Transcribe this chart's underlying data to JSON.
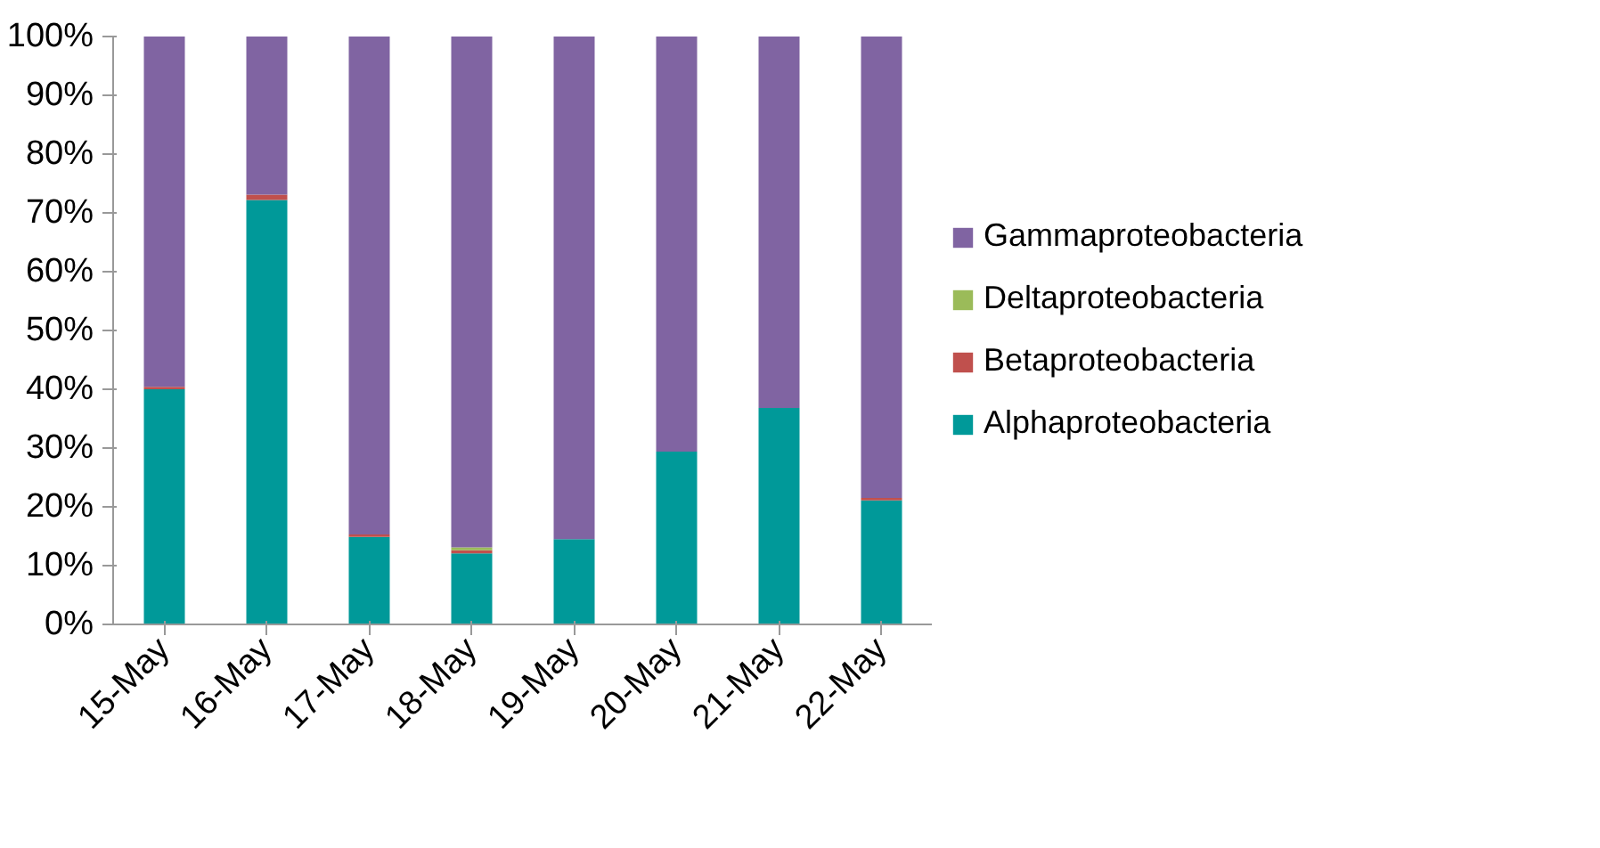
{
  "chart_data": {
    "type": "bar",
    "stacked": true,
    "categories": [
      "15-May",
      "16-May",
      "17-May",
      "18-May",
      "19-May",
      "20-May",
      "21-May",
      "22-May"
    ],
    "series": [
      {
        "name": "Alphaproteobacteria",
        "color": "#009999",
        "values": [
          40,
          72.2,
          14.9,
          12.1,
          14.5,
          29.4,
          36.8,
          21.1
        ]
      },
      {
        "name": "Betaproteobacteria",
        "color": "#c0504d",
        "values": [
          0.4,
          0.9,
          0.4,
          0.5,
          0,
          0,
          0,
          0.4
        ]
      },
      {
        "name": "Deltaproteobacteria",
        "color": "#9bbb59",
        "values": [
          0,
          0,
          0,
          0.5,
          0,
          0,
          0,
          0
        ]
      },
      {
        "name": "Gammaproteobacteria",
        "color": "#8064a2",
        "values": [
          59.6,
          26.9,
          84.7,
          86.9,
          85.5,
          70.6,
          63.2,
          78.5
        ]
      }
    ],
    "ylim": [
      0,
      100
    ],
    "yticks": [
      {
        "value": 0,
        "label": "0%"
      },
      {
        "value": 10,
        "label": "10%"
      },
      {
        "value": 20,
        "label": "20%"
      },
      {
        "value": 30,
        "label": "30%"
      },
      {
        "value": 40,
        "label": "40%"
      },
      {
        "value": 50,
        "label": "50%"
      },
      {
        "value": 60,
        "label": "60%"
      },
      {
        "value": 70,
        "label": "70%"
      },
      {
        "value": 80,
        "label": "80%"
      },
      {
        "value": 90,
        "label": "90%"
      },
      {
        "value": 100,
        "label": "100%"
      }
    ],
    "grid": false,
    "legend": "right"
  }
}
